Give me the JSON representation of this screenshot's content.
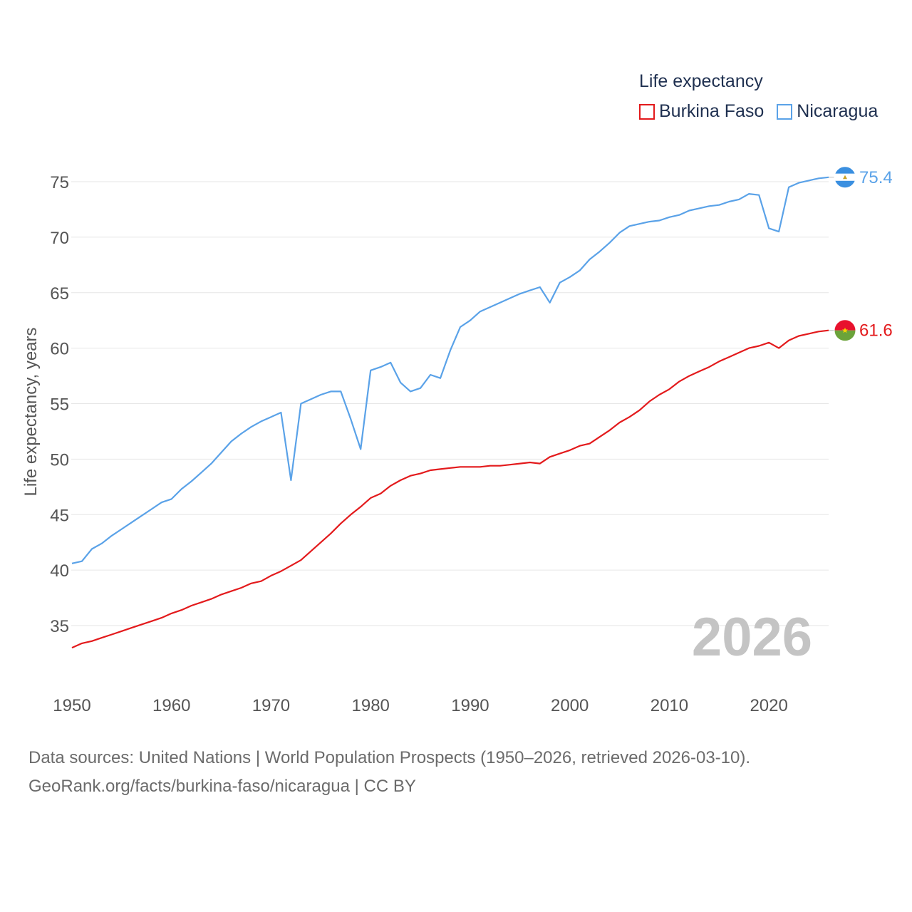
{
  "legend": {
    "title": "Life expectancy",
    "items": [
      {
        "label": "Burkina Faso",
        "color": "#e31a1c"
      },
      {
        "label": "Nicaragua",
        "color": "#5aa2e8"
      }
    ]
  },
  "chart_data": {
    "type": "line",
    "title": "Life expectancy",
    "ylabel": "Life expectancy, years",
    "xlabel": "",
    "year_watermark": "2026",
    "xlim": [
      1950,
      2026
    ],
    "ylim": [
      30,
      78
    ],
    "yticks": [
      35,
      40,
      45,
      50,
      55,
      60,
      65,
      70,
      75
    ],
    "xticks": [
      1950,
      1960,
      1970,
      1980,
      1990,
      2000,
      2010,
      2020
    ],
    "x": [
      1950,
      1951,
      1952,
      1953,
      1954,
      1955,
      1956,
      1957,
      1958,
      1959,
      1960,
      1961,
      1962,
      1963,
      1964,
      1965,
      1966,
      1967,
      1968,
      1969,
      1970,
      1971,
      1972,
      1973,
      1974,
      1975,
      1976,
      1977,
      1978,
      1979,
      1980,
      1981,
      1982,
      1983,
      1984,
      1985,
      1986,
      1987,
      1988,
      1989,
      1990,
      1991,
      1992,
      1993,
      1994,
      1995,
      1996,
      1997,
      1998,
      1999,
      2000,
      2001,
      2002,
      2003,
      2004,
      2005,
      2006,
      2007,
      2008,
      2009,
      2010,
      2011,
      2012,
      2013,
      2014,
      2015,
      2016,
      2017,
      2018,
      2019,
      2020,
      2021,
      2022,
      2023,
      2024,
      2025,
      2026
    ],
    "series": [
      {
        "name": "Burkina Faso",
        "color": "#e31a1c",
        "end_label": "61.6",
        "values": [
          33.0,
          33.4,
          33.6,
          33.9,
          34.2,
          34.5,
          34.8,
          35.1,
          35.4,
          35.7,
          36.1,
          36.4,
          36.8,
          37.1,
          37.4,
          37.8,
          38.1,
          38.4,
          38.8,
          39.0,
          39.5,
          39.9,
          40.4,
          40.9,
          41.7,
          42.5,
          43.3,
          44.2,
          45.0,
          45.7,
          46.5,
          46.9,
          47.6,
          48.1,
          48.5,
          48.7,
          49.0,
          49.1,
          49.2,
          49.3,
          49.3,
          49.3,
          49.4,
          49.4,
          49.5,
          49.6,
          49.7,
          49.6,
          50.2,
          50.5,
          50.8,
          51.2,
          51.4,
          52.0,
          52.6,
          53.3,
          53.8,
          54.4,
          55.2,
          55.8,
          56.3,
          57.0,
          57.5,
          57.9,
          58.3,
          58.8,
          59.2,
          59.6,
          60.0,
          60.2,
          60.5,
          60.0,
          60.7,
          61.1,
          61.3,
          61.5,
          61.6
        ]
      },
      {
        "name": "Nicaragua",
        "color": "#5aa2e8",
        "end_label": "75.4",
        "values": [
          40.6,
          40.8,
          41.9,
          42.4,
          43.1,
          43.7,
          44.3,
          44.9,
          45.5,
          46.1,
          46.4,
          47.3,
          48.0,
          48.8,
          49.6,
          50.6,
          51.6,
          52.3,
          52.9,
          53.4,
          53.8,
          54.2,
          48.1,
          55.0,
          55.4,
          55.8,
          56.1,
          56.1,
          53.6,
          50.9,
          58.0,
          58.3,
          58.7,
          56.9,
          56.1,
          56.4,
          57.6,
          57.3,
          59.8,
          61.9,
          62.5,
          63.3,
          63.7,
          64.1,
          64.5,
          64.9,
          65.2,
          65.5,
          64.1,
          65.9,
          66.4,
          67.0,
          68.0,
          68.7,
          69.5,
          70.4,
          71.0,
          71.2,
          71.4,
          71.5,
          71.8,
          72.0,
          72.4,
          72.6,
          72.8,
          72.9,
          73.2,
          73.4,
          73.9,
          73.8,
          70.8,
          70.5,
          74.5,
          74.9,
          75.1,
          75.3,
          75.4
        ]
      }
    ]
  },
  "source": {
    "line1": "Data sources: United Nations | World Population Prospects (1950–2026, retrieved 2026-03-10).",
    "line2": "GeoRank.org/facts/burkina-faso/nicaragua | CC BY"
  }
}
